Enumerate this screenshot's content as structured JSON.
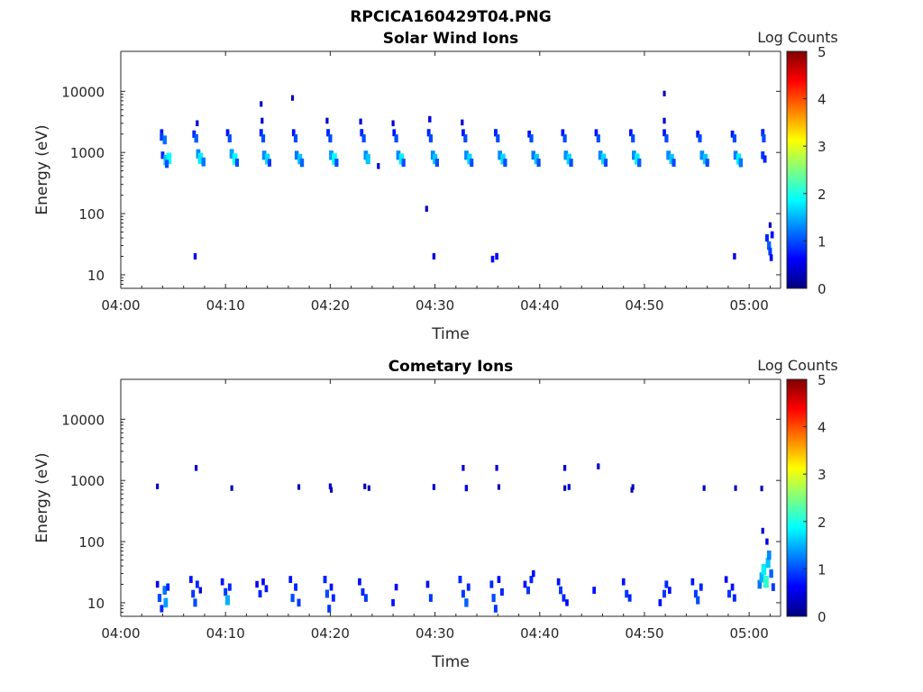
{
  "figure": {
    "title": "RPCICA160429T04.PNG"
  },
  "colors": {
    "axis": "#262626",
    "colormap": [
      "#00007f",
      "#0000ff",
      "#007fff",
      "#00ffff",
      "#7fff7f",
      "#ffff00",
      "#ff7f00",
      "#ff0000",
      "#7f0000"
    ]
  },
  "chart_data": [
    {
      "type": "heatmap",
      "title": "Solar Wind Ions",
      "xlabel": "Time",
      "ylabel": "Energy (eV)",
      "x_unit": "minutes after 04:00",
      "xlim": [
        0,
        63
      ],
      "ylim": [
        6,
        45000
      ],
      "y_scale": "log",
      "x_ticks": [
        0,
        10,
        20,
        30,
        40,
        50,
        60
      ],
      "x_tick_labels": [
        "04:00",
        "04:10",
        "04:20",
        "04:30",
        "04:40",
        "04:50",
        "05:00"
      ],
      "y_ticks": [
        10,
        100,
        1000,
        10000
      ],
      "y_tick_labels": [
        "10",
        "100",
        "1000",
        "10000"
      ],
      "colorbar": {
        "label": "Log Counts",
        "range": [
          0,
          5
        ],
        "ticks": [
          0,
          1,
          2,
          3,
          4,
          5
        ],
        "tick_labels": [
          "0",
          "1",
          "2",
          "3",
          "4",
          "5"
        ]
      },
      "grid": false,
      "points": [
        [
          3.9,
          2100,
          0.7
        ],
        [
          3.9,
          1800,
          0.9
        ],
        [
          4.2,
          1600,
          1.2
        ],
        [
          4.0,
          900,
          0.8
        ],
        [
          4.3,
          750,
          1.6
        ],
        [
          4.6,
          800,
          1.9
        ],
        [
          4.4,
          650,
          1.0
        ],
        [
          7.0,
          2000,
          0.8
        ],
        [
          7.2,
          1700,
          1.1
        ],
        [
          7.4,
          950,
          1.3
        ],
        [
          7.6,
          800,
          1.8
        ],
        [
          7.9,
          700,
          1.2
        ],
        [
          7.3,
          3000,
          0.4
        ],
        [
          7.1,
          20,
          0.5
        ],
        [
          10.2,
          2100,
          0.7
        ],
        [
          10.4,
          1700,
          1.0
        ],
        [
          10.6,
          950,
          1.4
        ],
        [
          10.9,
          780,
          1.9
        ],
        [
          11.1,
          680,
          1.0
        ],
        [
          13.4,
          6200,
          0.3
        ],
        [
          13.5,
          3300,
          0.4
        ],
        [
          13.4,
          2100,
          0.8
        ],
        [
          13.6,
          1700,
          1.0
        ],
        [
          13.7,
          900,
          1.3
        ],
        [
          14.0,
          780,
          1.7
        ],
        [
          14.2,
          680,
          0.9
        ],
        [
          16.4,
          7800,
          0.3
        ],
        [
          16.5,
          2100,
          0.7
        ],
        [
          16.7,
          1700,
          1.0
        ],
        [
          16.8,
          900,
          1.2
        ],
        [
          17.1,
          780,
          1.6
        ],
        [
          17.3,
          680,
          1.1
        ],
        [
          19.7,
          3300,
          0.4
        ],
        [
          19.8,
          2100,
          0.8
        ],
        [
          20.0,
          1700,
          1.0
        ],
        [
          20.1,
          900,
          1.4
        ],
        [
          20.4,
          780,
          1.9
        ],
        [
          20.6,
          680,
          1.0
        ],
        [
          22.9,
          3200,
          0.4
        ],
        [
          23.0,
          2100,
          0.8
        ],
        [
          23.2,
          1700,
          1.0
        ],
        [
          23.4,
          900,
          1.3
        ],
        [
          23.6,
          780,
          1.6
        ],
        [
          24.6,
          600,
          0.4
        ],
        [
          26.0,
          3000,
          0.4
        ],
        [
          26.1,
          2100,
          0.7
        ],
        [
          26.3,
          1700,
          1.0
        ],
        [
          26.5,
          900,
          1.3
        ],
        [
          26.8,
          780,
          1.8
        ],
        [
          27.0,
          680,
          1.0
        ],
        [
          29.2,
          120,
          0.4
        ],
        [
          29.5,
          3500,
          0.5
        ],
        [
          29.4,
          2100,
          0.8
        ],
        [
          29.6,
          1700,
          1.0
        ],
        [
          29.8,
          900,
          1.3
        ],
        [
          30.0,
          780,
          1.6
        ],
        [
          30.2,
          680,
          1.0
        ],
        [
          29.9,
          20,
          0.5
        ],
        [
          32.6,
          3100,
          0.4
        ],
        [
          32.7,
          2100,
          0.7
        ],
        [
          32.9,
          1700,
          1.0
        ],
        [
          33.0,
          900,
          1.3
        ],
        [
          33.3,
          780,
          1.7
        ],
        [
          33.5,
          680,
          1.0
        ],
        [
          35.5,
          18,
          0.6
        ],
        [
          35.9,
          20,
          0.6
        ],
        [
          35.8,
          2100,
          0.8
        ],
        [
          36.0,
          1700,
          1.0
        ],
        [
          36.2,
          900,
          1.3
        ],
        [
          36.5,
          780,
          1.7
        ],
        [
          36.7,
          680,
          1.0
        ],
        [
          39.0,
          2000,
          0.7
        ],
        [
          39.2,
          1700,
          1.0
        ],
        [
          39.4,
          900,
          1.2
        ],
        [
          39.7,
          780,
          1.6
        ],
        [
          39.9,
          680,
          1.0
        ],
        [
          42.2,
          2100,
          0.7
        ],
        [
          42.4,
          1700,
          1.0
        ],
        [
          42.5,
          900,
          1.3
        ],
        [
          42.8,
          780,
          1.7
        ],
        [
          43.0,
          680,
          1.0
        ],
        [
          45.4,
          2100,
          0.7
        ],
        [
          45.6,
          1700,
          1.0
        ],
        [
          45.8,
          900,
          1.3
        ],
        [
          46.1,
          780,
          1.7
        ],
        [
          46.3,
          680,
          1.0
        ],
        [
          48.7,
          2100,
          0.7
        ],
        [
          48.9,
          1700,
          1.0
        ],
        [
          49.0,
          900,
          1.3
        ],
        [
          49.3,
          780,
          1.8
        ],
        [
          49.5,
          680,
          1.1
        ],
        [
          51.9,
          9200,
          0.3
        ],
        [
          51.9,
          3300,
          0.4
        ],
        [
          51.9,
          2100,
          0.7
        ],
        [
          52.1,
          1700,
          1.0
        ],
        [
          52.3,
          900,
          1.3
        ],
        [
          52.6,
          780,
          1.6
        ],
        [
          52.8,
          680,
          1.0
        ],
        [
          55.1,
          2000,
          0.7
        ],
        [
          55.3,
          1700,
          1.0
        ],
        [
          55.5,
          900,
          1.3
        ],
        [
          55.8,
          780,
          1.6
        ],
        [
          56.0,
          680,
          1.0
        ],
        [
          58.4,
          2000,
          0.7
        ],
        [
          58.6,
          1700,
          1.0
        ],
        [
          58.7,
          900,
          1.2
        ],
        [
          59.0,
          780,
          1.8
        ],
        [
          59.2,
          680,
          1.2
        ],
        [
          58.6,
          20,
          0.5
        ],
        [
          61.3,
          2100,
          0.8
        ],
        [
          61.4,
          1700,
          1.0
        ],
        [
          61.3,
          900,
          0.9
        ],
        [
          61.5,
          780,
          0.8
        ],
        [
          61.7,
          40,
          0.8
        ],
        [
          61.9,
          30,
          1.1
        ],
        [
          62.0,
          24,
          0.9
        ],
        [
          62.2,
          45,
          0.7
        ],
        [
          62.1,
          19,
          0.6
        ],
        [
          62.0,
          65,
          0.3
        ]
      ]
    },
    {
      "type": "heatmap",
      "title": "Cometary Ions",
      "xlabel": "Time",
      "ylabel": "Energy (eV)",
      "x_unit": "minutes after 04:00",
      "xlim": [
        0,
        63
      ],
      "ylim": [
        6,
        45000
      ],
      "y_scale": "log",
      "x_ticks": [
        0,
        10,
        20,
        30,
        40,
        50,
        60
      ],
      "x_tick_labels": [
        "04:00",
        "04:10",
        "04:20",
        "04:30",
        "04:40",
        "04:50",
        "05:00"
      ],
      "y_ticks": [
        10,
        100,
        1000,
        10000
      ],
      "y_tick_labels": [
        "10",
        "100",
        "1000",
        "10000"
      ],
      "colorbar": {
        "label": "Log Counts",
        "range": [
          0,
          5
        ],
        "ticks": [
          0,
          1,
          2,
          3,
          4,
          5
        ],
        "tick_labels": [
          "0",
          "1",
          "2",
          "3",
          "4",
          "5"
        ]
      },
      "grid": false,
      "points": [
        [
          3.5,
          800,
          0.3
        ],
        [
          7.2,
          1600,
          0.4
        ],
        [
          10.6,
          750,
          0.3
        ],
        [
          17.0,
          780,
          0.3
        ],
        [
          20.0,
          800,
          0.4
        ],
        [
          20.1,
          700,
          0.3
        ],
        [
          23.3,
          800,
          0.3
        ],
        [
          23.7,
          750,
          0.3
        ],
        [
          29.9,
          780,
          0.4
        ],
        [
          32.7,
          1600,
          0.4
        ],
        [
          33.0,
          750,
          0.5
        ],
        [
          35.9,
          1600,
          0.4
        ],
        [
          36.1,
          780,
          0.3
        ],
        [
          42.4,
          1600,
          0.4
        ],
        [
          42.4,
          750,
          0.3
        ],
        [
          42.8,
          780,
          0.4
        ],
        [
          45.6,
          1700,
          0.4
        ],
        [
          48.9,
          780,
          0.3
        ],
        [
          48.8,
          700,
          0.3
        ],
        [
          55.7,
          750,
          0.3
        ],
        [
          58.7,
          750,
          0.3
        ],
        [
          61.2,
          740,
          0.3
        ],
        [
          61.3,
          150,
          0.4
        ],
        [
          3.5,
          20,
          0.6
        ],
        [
          3.7,
          12,
          1.0
        ],
        [
          3.9,
          8,
          0.8
        ],
        [
          4.2,
          16,
          1.2
        ],
        [
          4.3,
          10,
          1.4
        ],
        [
          4.5,
          18,
          0.8
        ],
        [
          6.7,
          24,
          0.7
        ],
        [
          6.9,
          14,
          0.9
        ],
        [
          7.1,
          10,
          1.0
        ],
        [
          7.3,
          20,
          0.8
        ],
        [
          7.6,
          16,
          0.5
        ],
        [
          9.7,
          22,
          0.7
        ],
        [
          10.0,
          15,
          0.9
        ],
        [
          10.2,
          11,
          1.5
        ],
        [
          10.4,
          18,
          0.8
        ],
        [
          13.0,
          20,
          0.6
        ],
        [
          13.3,
          14,
          0.8
        ],
        [
          13.6,
          22,
          0.6
        ],
        [
          13.9,
          17,
          0.7
        ],
        [
          16.2,
          24,
          0.7
        ],
        [
          16.4,
          12,
          1.0
        ],
        [
          16.7,
          18,
          0.8
        ],
        [
          17.0,
          10,
          0.9
        ],
        [
          19.5,
          24,
          0.8
        ],
        [
          19.7,
          14,
          1.0
        ],
        [
          19.9,
          8,
          0.9
        ],
        [
          20.1,
          18,
          0.7
        ],
        [
          20.3,
          12,
          0.8
        ],
        [
          22.8,
          22,
          0.7
        ],
        [
          23.1,
          15,
          0.8
        ],
        [
          23.4,
          12,
          0.9
        ],
        [
          26.0,
          10,
          0.7
        ],
        [
          26.3,
          18,
          0.6
        ],
        [
          29.3,
          20,
          0.7
        ],
        [
          29.6,
          12,
          0.9
        ],
        [
          32.4,
          24,
          0.8
        ],
        [
          32.7,
          14,
          0.9
        ],
        [
          33.0,
          10,
          1.1
        ],
        [
          33.2,
          18,
          0.8
        ],
        [
          35.4,
          20,
          0.8
        ],
        [
          35.6,
          12,
          1.0
        ],
        [
          35.8,
          8,
          0.9
        ],
        [
          36.1,
          24,
          0.7
        ],
        [
          36.4,
          15,
          0.8
        ],
        [
          38.6,
          20,
          0.7
        ],
        [
          38.9,
          16,
          0.9
        ],
        [
          39.2,
          24,
          0.8
        ],
        [
          39.4,
          30,
          0.6
        ],
        [
          41.8,
          22,
          0.7
        ],
        [
          42.0,
          16,
          0.9
        ],
        [
          42.3,
          12,
          0.8
        ],
        [
          42.6,
          10,
          0.6
        ],
        [
          45.2,
          16,
          0.7
        ],
        [
          48.0,
          22,
          0.7
        ],
        [
          48.3,
          14,
          0.9
        ],
        [
          48.6,
          12,
          0.8
        ],
        [
          51.5,
          10,
          0.7
        ],
        [
          51.9,
          14,
          0.9
        ],
        [
          52.1,
          20,
          0.8
        ],
        [
          52.4,
          16,
          0.7
        ],
        [
          54.6,
          22,
          0.7
        ],
        [
          54.9,
          14,
          0.9
        ],
        [
          55.1,
          11,
          1.0
        ],
        [
          55.4,
          18,
          0.8
        ],
        [
          57.8,
          24,
          0.6
        ],
        [
          58.1,
          14,
          0.9
        ],
        [
          58.4,
          18,
          0.7
        ],
        [
          58.6,
          12,
          0.8
        ],
        [
          61.0,
          20,
          1.2
        ],
        [
          61.2,
          26,
          1.5
        ],
        [
          61.4,
          35,
          1.8
        ],
        [
          61.6,
          22,
          2.1
        ],
        [
          61.8,
          45,
          1.6
        ],
        [
          61.9,
          60,
          1.3
        ],
        [
          62.1,
          30,
          1.1
        ],
        [
          62.3,
          18,
          0.9
        ],
        [
          61.7,
          100,
          0.5
        ]
      ]
    }
  ]
}
